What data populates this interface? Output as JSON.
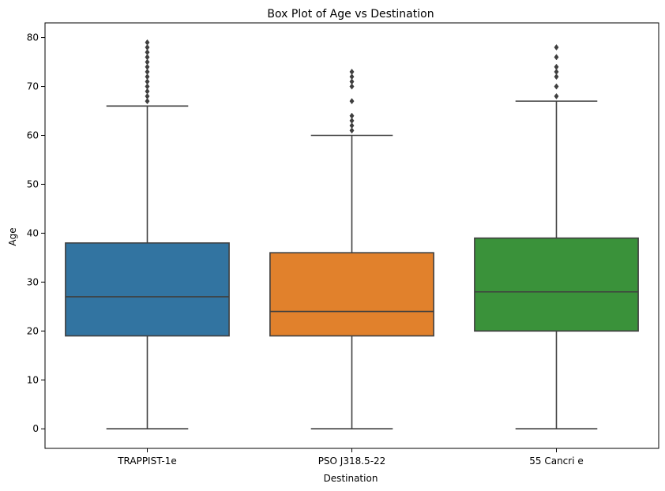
{
  "chart_data": {
    "type": "box",
    "title": "Box Plot of Age vs Destination",
    "xlabel": "Destination",
    "ylabel": "Age",
    "ylim": [
      -4,
      83
    ],
    "yticks": [
      0,
      10,
      20,
      30,
      40,
      50,
      60,
      70,
      80
    ],
    "categories": [
      "TRAPPIST-1e",
      "PSO J318.5-22",
      "55 Cancri e"
    ],
    "colors": [
      "#3274a1",
      "#e1812c",
      "#3a923a"
    ],
    "edge_color": "#3f3f3f",
    "grid": false,
    "legend": "none",
    "boxes": [
      {
        "category": "TRAPPIST-1e",
        "whisker_low": 0,
        "q1": 19,
        "median": 27,
        "q3": 38,
        "whisker_high": 66,
        "outliers": [
          67,
          68,
          69,
          70,
          71,
          72,
          73,
          74,
          75,
          76,
          77,
          78,
          79
        ]
      },
      {
        "category": "PSO J318.5-22",
        "whisker_low": 0,
        "q1": 19,
        "median": 24,
        "q3": 36,
        "whisker_high": 60,
        "outliers": [
          61,
          62,
          63,
          64,
          67,
          70,
          71,
          72,
          73
        ]
      },
      {
        "category": "55 Cancri e",
        "whisker_low": 0,
        "q1": 20,
        "median": 28,
        "q3": 39,
        "whisker_high": 67,
        "outliers": [
          68,
          70,
          72,
          73,
          74,
          76,
          78
        ]
      }
    ]
  }
}
